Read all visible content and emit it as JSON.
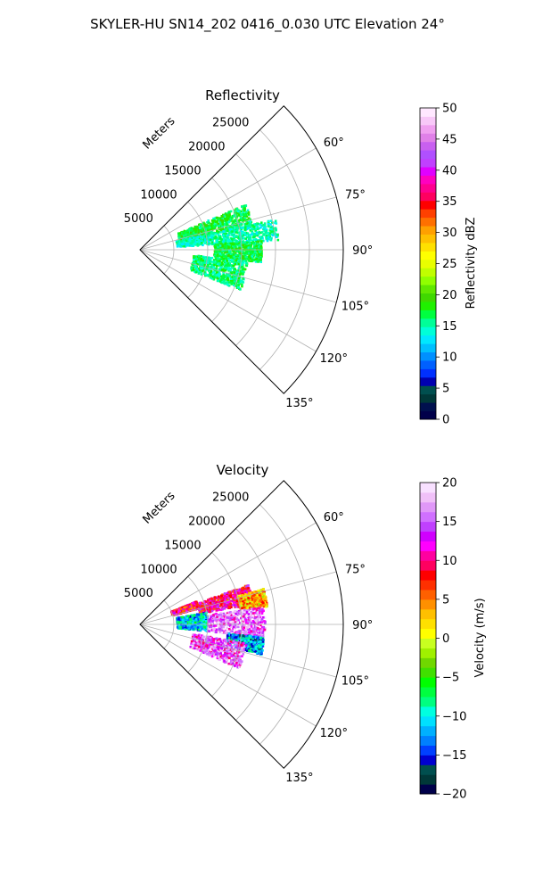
{
  "figure_title": "SKYLER-HU  SN14_202  0416_0.030 UTC Elevation 24°",
  "chart_data": [
    {
      "type": "polar-sector",
      "title": "Reflectivity",
      "range_axis_label": "Meters",
      "range_ticks": [
        "5000",
        "10000",
        "15000",
        "20000",
        "25000"
      ],
      "range_values": [
        5000,
        10000,
        15000,
        20000,
        25000
      ],
      "range_max": 30000,
      "azimuth_ticks": [
        "60°",
        "75°",
        "90°",
        "105°",
        "120°",
        "135°"
      ],
      "azimuth_values": [
        60,
        75,
        90,
        105,
        120,
        135
      ],
      "azimuth_range": [
        45,
        135
      ],
      "grid": true,
      "colorbar": {
        "label": "Reflectivity dBZ",
        "ticks": [
          "0",
          "5",
          "10",
          "15",
          "20",
          "25",
          "30",
          "35",
          "40",
          "45",
          "50"
        ],
        "range": [
          0,
          50
        ]
      },
      "echo_regions": [
        {
          "az": [
            67,
            78
          ],
          "range": [
            6000,
            17000
          ],
          "dominant_value": 17
        },
        {
          "az": [
            77,
            86
          ],
          "range": [
            5500,
            20500
          ],
          "dominant_value": 15
        },
        {
          "az": [
            86,
            96
          ],
          "range": [
            11000,
            18000
          ],
          "dominant_value": 17
        },
        {
          "az": [
            96,
            112
          ],
          "range": [
            8000,
            16000
          ],
          "dominant_value": 16
        }
      ]
    },
    {
      "type": "polar-sector",
      "title": "Velocity",
      "range_axis_label": "Meters",
      "range_ticks": [
        "5000",
        "10000",
        "15000",
        "20000",
        "25000"
      ],
      "range_values": [
        5000,
        10000,
        15000,
        20000,
        25000
      ],
      "range_max": 30000,
      "azimuth_ticks": [
        "60°",
        "75°",
        "90°",
        "105°",
        "120°",
        "135°"
      ],
      "azimuth_values": [
        60,
        75,
        90,
        105,
        120,
        135
      ],
      "azimuth_range": [
        45,
        135
      ],
      "grid": true,
      "colorbar": {
        "label": "Velocity (m/s)",
        "ticks": [
          "−20",
          "−15",
          "−10",
          "−5",
          "0",
          "5",
          "10",
          "15",
          "20"
        ],
        "range": [
          -20,
          20
        ]
      },
      "echo_regions": [
        {
          "az": [
            70,
            80
          ],
          "range": [
            9000,
            17000
          ],
          "dominant_value": 10
        },
        {
          "az": [
            74,
            82
          ],
          "range": [
            15000,
            19000
          ],
          "dominant_value": 3
        },
        {
          "az": [
            68,
            75
          ],
          "range": [
            5000,
            9000
          ],
          "dominant_value": 9
        },
        {
          "az": [
            80,
            96
          ],
          "range": [
            5500,
            10000
          ],
          "dominant_value": -11
        },
        {
          "az": [
            82,
            96
          ],
          "range": [
            10000,
            18500
          ],
          "dominant_value": 15
        },
        {
          "az": [
            96,
            104
          ],
          "range": [
            13000,
            18500
          ],
          "dominant_value": -12
        },
        {
          "az": [
            100,
            114
          ],
          "range": [
            8000,
            16000
          ],
          "dominant_value": 14
        }
      ]
    }
  ],
  "colors": {
    "reflectivity_scale": [
      "#00004a",
      "#00104e",
      "#003838",
      "#004f4f",
      "#0000b0",
      "#0030ff",
      "#0060ff",
      "#0090ff",
      "#00c0ff",
      "#00e8ff",
      "#00ffd8",
      "#00ff98",
      "#00ff40",
      "#20f000",
      "#40d800",
      "#60e800",
      "#90ff00",
      "#c0ff00",
      "#e8ff00",
      "#ffff00",
      "#ffe000",
      "#ffc000",
      "#ffa000",
      "#ff7000",
      "#ff4000",
      "#ff0000",
      "#ff0060",
      "#ff0090",
      "#ff00c0",
      "#e000ff",
      "#c040ff",
      "#b050ff",
      "#c860f0",
      "#e080e8",
      "#f0a0f0",
      "#f8c8f8",
      "#ffe8ff"
    ],
    "velocity_scale": [
      "#00004a",
      "#003838",
      "#004f4f",
      "#0000d0",
      "#0040ff",
      "#0080ff",
      "#00b0ff",
      "#00e0ff",
      "#00ffe0",
      "#00ff80",
      "#00ff40",
      "#00ff00",
      "#40e000",
      "#70d800",
      "#a0f000",
      "#c8ff20",
      "#ffff00",
      "#ffe000",
      "#ffc000",
      "#ff9000",
      "#ff6000",
      "#ff3000",
      "#ff0000",
      "#ff0060",
      "#ff00a0",
      "#ff00ff",
      "#d000ff",
      "#c040ff",
      "#d070ff",
      "#e098f8",
      "#f0c0f8",
      "#f8e0ff"
    ]
  }
}
